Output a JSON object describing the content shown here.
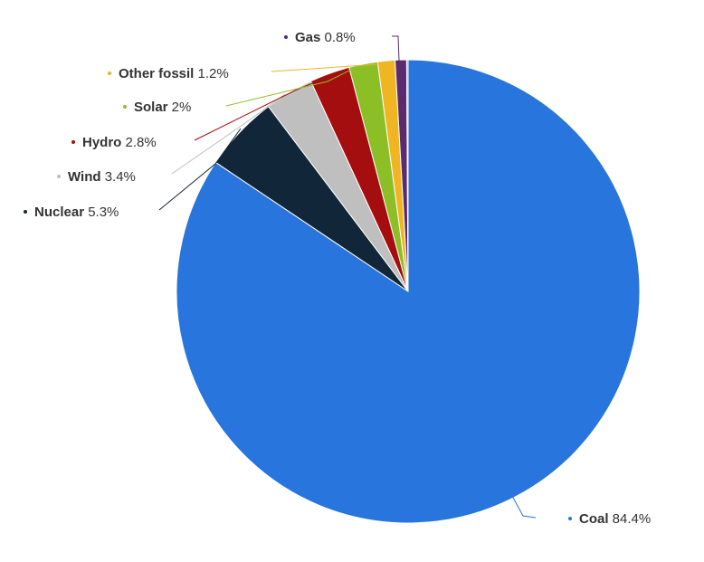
{
  "chart_data": {
    "type": "pie",
    "title": "",
    "slices": [
      {
        "name": "Coal",
        "value": 84.4,
        "label": "84.4%",
        "color": "#2876dd"
      },
      {
        "name": "Nuclear",
        "value": 5.3,
        "label": "5.3%",
        "color": "#12263a"
      },
      {
        "name": "Wind",
        "value": 3.4,
        "label": "3.4%",
        "color": "#bfbfbf"
      },
      {
        "name": "Hydro",
        "value": 2.8,
        "label": "2.8%",
        "color": "#a50e0e"
      },
      {
        "name": "Solar",
        "value": 2.0,
        "label": "2%",
        "color": "#8cbf26"
      },
      {
        "name": "Other fossil",
        "value": 1.2,
        "label": "1.2%",
        "color": "#f0b523"
      },
      {
        "name": "Gas",
        "value": 0.8,
        "label": "0.8%",
        "color": "#5c2a6e"
      },
      {
        "name": "",
        "value": 0.1,
        "label": "",
        "color": "#c47ee0"
      }
    ],
    "start_direction": "top",
    "direction": "clockwise"
  }
}
